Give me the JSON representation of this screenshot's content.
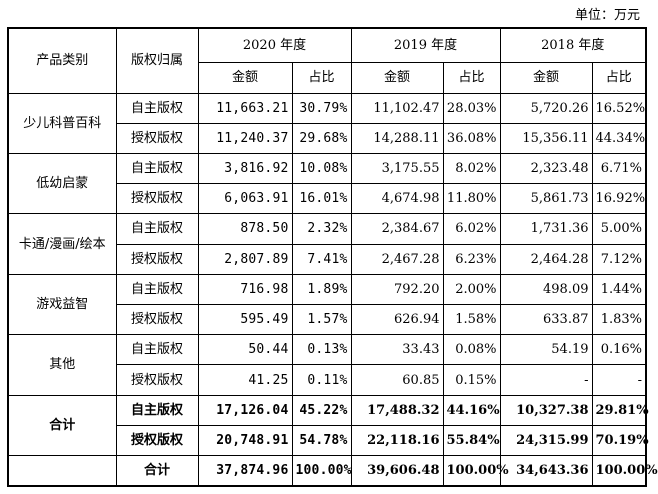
{
  "unit_label": "单位：万元",
  "headers": {
    "category": "产品类别",
    "copyright": "版权归属",
    "years": [
      "2020 年度",
      "2019 年度",
      "2018 年度"
    ],
    "amount": "金额",
    "ratio": "占比"
  },
  "categories": [
    {
      "name": "少儿科普百科",
      "rows": [
        {
          "type": "自主版权",
          "v": [
            "11,663.21",
            "30.79%",
            "11,102.47",
            "28.03%",
            "5,720.26",
            "16.52%"
          ]
        },
        {
          "type": "授权版权",
          "v": [
            "11,240.37",
            "29.68%",
            "14,288.11",
            "36.08%",
            "15,356.11",
            "44.34%"
          ]
        }
      ]
    },
    {
      "name": "低幼启蒙",
      "rows": [
        {
          "type": "自主版权",
          "v": [
            "3,816.92",
            "10.08%",
            "3,175.55",
            "8.02%",
            "2,323.48",
            "6.71%"
          ]
        },
        {
          "type": "授权版权",
          "v": [
            "6,063.91",
            "16.01%",
            "4,674.98",
            "11.80%",
            "5,861.73",
            "16.92%"
          ]
        }
      ]
    },
    {
      "name": "卡通/漫画/绘本",
      "rows": [
        {
          "type": "自主版权",
          "v": [
            "878.50",
            "2.32%",
            "2,384.67",
            "6.02%",
            "1,731.36",
            "5.00%"
          ]
        },
        {
          "type": "授权版权",
          "v": [
            "2,807.89",
            "7.41%",
            "2,467.28",
            "6.23%",
            "2,464.28",
            "7.12%"
          ]
        }
      ]
    },
    {
      "name": "游戏益智",
      "rows": [
        {
          "type": "自主版权",
          "v": [
            "716.98",
            "1.89%",
            "792.20",
            "2.00%",
            "498.09",
            "1.44%"
          ]
        },
        {
          "type": "授权版权",
          "v": [
            "595.49",
            "1.57%",
            "626.94",
            "1.58%",
            "633.87",
            "1.83%"
          ]
        }
      ]
    },
    {
      "name": "其他",
      "rows": [
        {
          "type": "自主版权",
          "v": [
            "50.44",
            "0.13%",
            "33.43",
            "0.08%",
            "54.19",
            "0.16%"
          ]
        },
        {
          "type": "授权版权",
          "v": [
            "41.25",
            "0.11%",
            "60.85",
            "0.15%",
            "-",
            "-"
          ]
        }
      ]
    }
  ],
  "total": {
    "name": "合计",
    "rows": [
      {
        "type": "自主版权",
        "v": [
          "17,126.04",
          "45.22%",
          "17,488.32",
          "44.16%",
          "10,327.38",
          "29.81%"
        ]
      },
      {
        "type": "授权版权",
        "v": [
          "20,748.91",
          "54.78%",
          "22,118.16",
          "55.84%",
          "24,315.99",
          "70.19%"
        ]
      },
      {
        "type": "合计",
        "v": [
          "37,874.96",
          "100.00%",
          "39,606.48",
          "100.00%",
          "34,643.36",
          "100.00%"
        ]
      }
    ]
  }
}
